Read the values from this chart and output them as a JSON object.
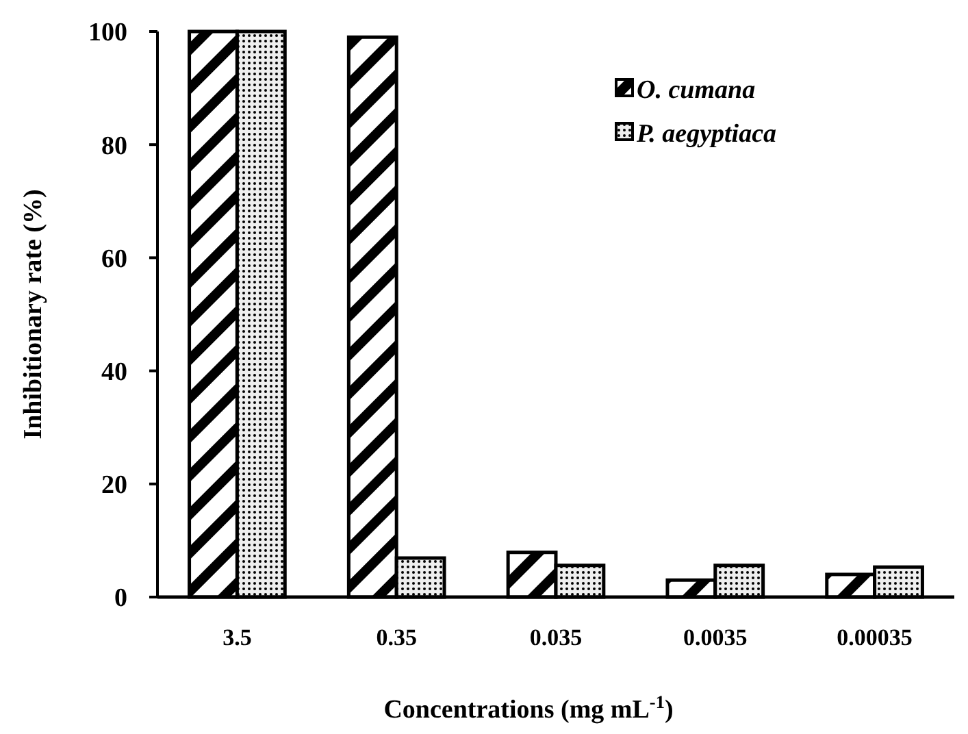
{
  "chart_data": {
    "type": "bar",
    "xlabel": "Concentrations (mg mL$^{-1}$)",
    "ylabel": "Inhibitionary rate (%)",
    "categories": [
      "3.5",
      "0.35",
      "0.035",
      "0.0035",
      "0.00035"
    ],
    "series": [
      {
        "name": "O. cumana",
        "color": "#000000",
        "values": [
          100,
          99,
          7.9,
          3.0,
          4.0
        ]
      },
      {
        "name": "P. aegyptiaca",
        "color": "#000000",
        "values": [
          100,
          6.9,
          5.6,
          5.6,
          5.3
        ]
      }
    ],
    "ylim": [
      0,
      100
    ],
    "yticks": [
      0,
      20,
      40,
      60,
      80,
      100
    ],
    "grid": false,
    "legend": "top right"
  }
}
